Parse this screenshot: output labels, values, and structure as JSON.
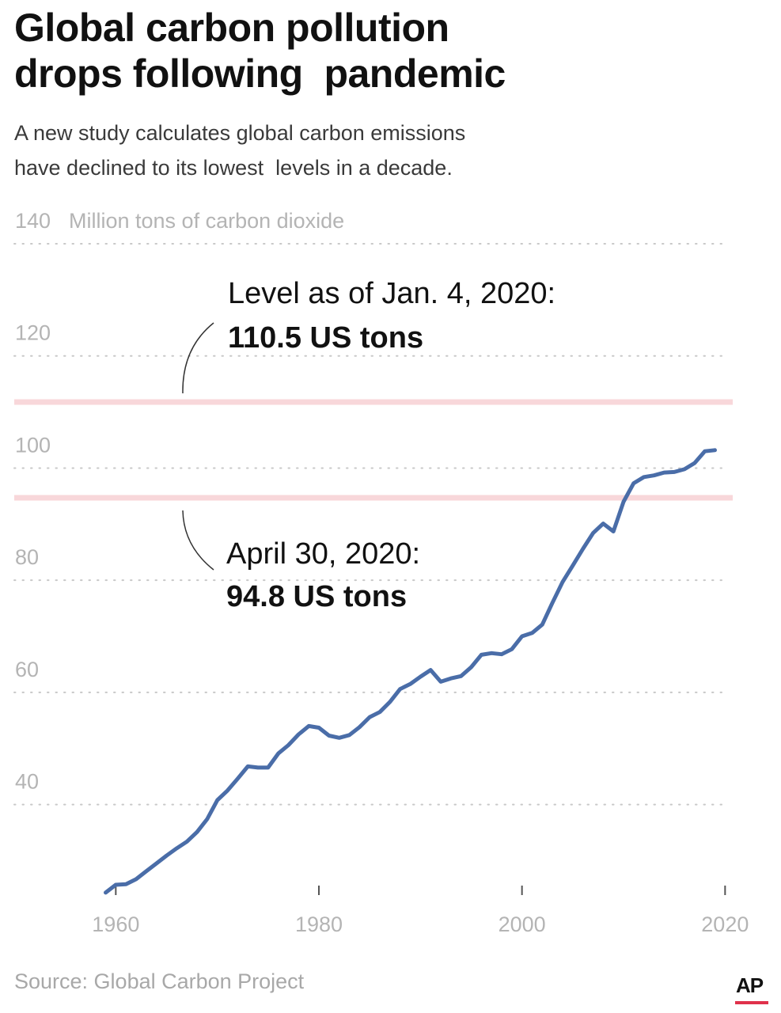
{
  "header": {
    "title_line1": "Global carbon pollution",
    "title_line2": "drops following  pandemic",
    "subtitle_line1": "A new study calculates global carbon emissions",
    "subtitle_line2": "have declined to its lowest  levels in a decade."
  },
  "chart_data": {
    "type": "line",
    "ylabel": "Million tons of carbon dioxide",
    "ylim": [
      24,
      140
    ],
    "xlim": [
      1950,
      2022
    ],
    "y_ticks": [
      {
        "value": 140,
        "label": "140"
      },
      {
        "value": 120,
        "label": "120"
      },
      {
        "value": 100,
        "label": "100"
      },
      {
        "value": 80,
        "label": "80"
      },
      {
        "value": 60,
        "label": "60"
      },
      {
        "value": 40,
        "label": "40"
      }
    ],
    "x_ticks": [
      {
        "value": 1960,
        "label": "1960"
      },
      {
        "value": 1980,
        "label": "1980"
      },
      {
        "value": 2000,
        "label": "2000"
      },
      {
        "value": 2020,
        "label": "2020"
      }
    ],
    "grid": true,
    "series": [
      {
        "color": "#4a6da8",
        "x": [
          1959,
          1960,
          1961,
          1962,
          1963,
          1964,
          1965,
          1966,
          1967,
          1968,
          1969,
          1970,
          1971,
          1972,
          1973,
          1974,
          1975,
          1976,
          1977,
          1978,
          1979,
          1980,
          1981,
          1982,
          1983,
          1984,
          1985,
          1986,
          1987,
          1988,
          1989,
          1990,
          1991,
          1992,
          1993,
          1994,
          1995,
          1996,
          1997,
          1998,
          1999,
          2000,
          2001,
          2002,
          2003,
          2004,
          2005,
          2006,
          2007,
          2008,
          2009,
          2010,
          2011,
          2012,
          2013,
          2014,
          2015,
          2016,
          2017,
          2018,
          2019
        ],
        "y": [
          24.3,
          25.7,
          25.8,
          26.7,
          28.1,
          29.5,
          30.9,
          32.2,
          33.4,
          35.1,
          37.4,
          40.8,
          42.5,
          44.6,
          46.8,
          46.6,
          46.6,
          49.1,
          50.6,
          52.5,
          54.0,
          53.7,
          52.3,
          51.9,
          52.4,
          53.8,
          55.6,
          56.5,
          58.3,
          60.6,
          61.5,
          62.8,
          64.0,
          61.9,
          62.5,
          62.9,
          64.5,
          66.7,
          67.0,
          66.8,
          67.7,
          70.0,
          70.6,
          72.1,
          76.0,
          79.7,
          82.6,
          85.6,
          88.4,
          90.1,
          88.7,
          94.0,
          97.3,
          98.4,
          98.7,
          99.2,
          99.3,
          99.8,
          100.9,
          103.0,
          103.2
        ]
      }
    ],
    "annotations": [
      {
        "y": 110.5,
        "color": "#f8d7da",
        "line1": "Level as of Jan. 4, 2020:",
        "line2": "110.5 US tons"
      },
      {
        "y": 94.8,
        "color": "#f8d7da",
        "line1": "April 30, 2020:",
        "line2": "94.8 US tons"
      }
    ],
    "colors": {
      "line": "#4a6da8",
      "grid": "#c8c8c8",
      "tick_text": "#b4b4b4",
      "reference_band": "#f8d7da"
    }
  },
  "footer": {
    "source": "Source: Global Carbon Project",
    "logo": "AP"
  }
}
